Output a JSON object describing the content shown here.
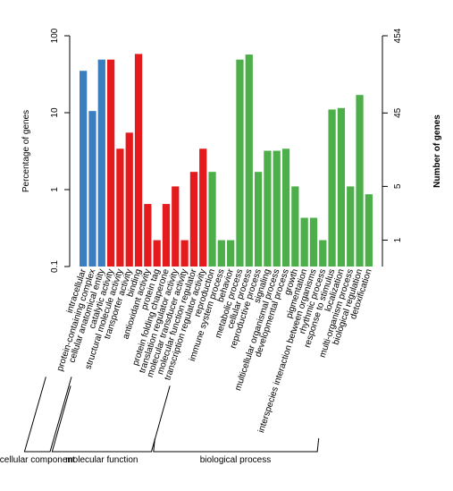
{
  "chart_data": {
    "type": "bar",
    "ylabel": "Percentage of genes",
    "y2label": "Number of genes",
    "log_scale": true,
    "ylim": [
      0.1,
      100
    ],
    "yticks": [
      100,
      10,
      1,
      0.1
    ],
    "y2lim": [
      0.454,
      454
    ],
    "y2ticks": [
      454,
      45,
      5,
      1
    ],
    "groups": [
      {
        "name": "cellular component",
        "color": "#3a7ebf",
        "categories": [
          "intracellular",
          "protein-containing complex",
          "cellular anatomical entity"
        ],
        "values": [
          35,
          10.5,
          49
        ]
      },
      {
        "name": "molecular function",
        "color": "#e41a1c",
        "categories": [
          "catalytic activity",
          "structural molecule activity",
          "transporter activity",
          "binding",
          "antioxidant activity",
          "protein tag",
          "protein folding chaperone",
          "translation regulator activity",
          "molecular transducer activity",
          "molecular function regulator",
          "transcription regulator activity"
        ],
        "values": [
          49,
          3.4,
          5.5,
          58,
          0.65,
          0.22,
          0.65,
          1.1,
          0.22,
          1.7,
          3.4
        ]
      },
      {
        "name": "biological process",
        "color": "#4daf4a",
        "categories": [
          "reproduction",
          "immune system process",
          "behavior",
          "metabolic process",
          "cellular process",
          "reproductive process",
          "signaling",
          "multicellular organismal process",
          "developmental process",
          "growth",
          "pigmentation",
          "interspecies interaction between organisms",
          "rhythmic process",
          "response to stimulus",
          "localization",
          "multi-organism process",
          "biological regulation",
          "detoxification"
        ],
        "values": [
          1.7,
          0.22,
          0.22,
          49,
          57,
          1.7,
          3.2,
          3.2,
          3.4,
          1.1,
          0.43,
          0.43,
          0.22,
          11,
          11.5,
          1.1,
          17,
          0.87
        ]
      }
    ]
  }
}
